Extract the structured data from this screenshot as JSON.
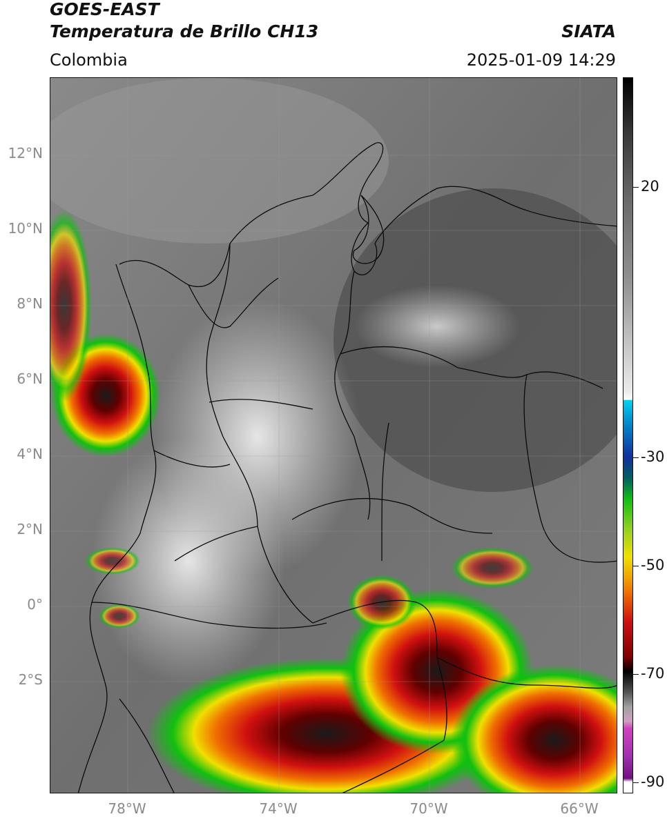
{
  "header": {
    "line1": "GOES-EAST",
    "line2": "Temperatura de Brillo CH13",
    "brand": "SIATA",
    "region": "Colombia",
    "timestamp": "2025-01-09 14:29"
  },
  "map": {
    "lat_labels": [
      "12°N",
      "10°N",
      "8°N",
      "6°N",
      "4°N",
      "2°N",
      "0°",
      "2°S"
    ],
    "lon_labels": [
      "78°W",
      "74°W",
      "70°W",
      "66°W"
    ]
  },
  "colorbar": {
    "labels": [
      "20",
      "-30",
      "-50",
      "-70",
      "-90"
    ],
    "colors": {
      "warm_gray": "#5a5a5a",
      "cyan": "#00c8f0",
      "blue": "#1030a0",
      "green": "#10c010",
      "yellow": "#f0e000",
      "orange": "#f07000",
      "red": "#d01010",
      "black": "#000000",
      "magenta": "#d040c0",
      "purple": "#701080"
    }
  }
}
